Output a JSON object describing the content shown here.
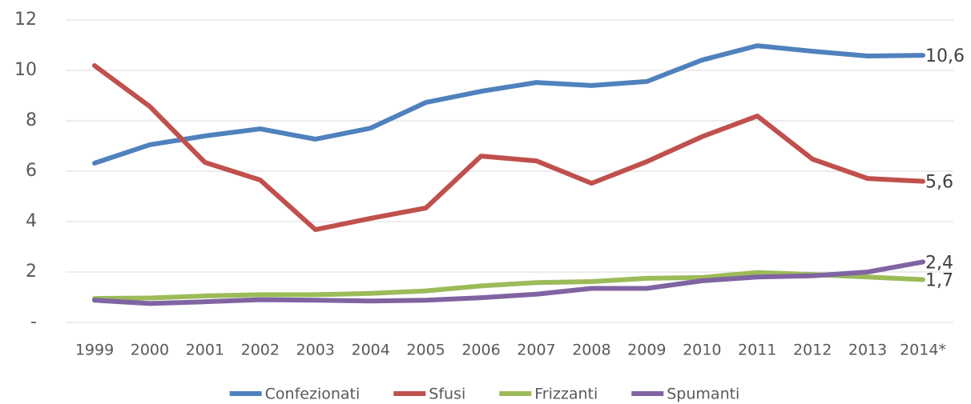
{
  "chart_data": {
    "type": "line",
    "categories": [
      "1999",
      "2000",
      "2001",
      "2002",
      "2003",
      "2004",
      "2005",
      "2006",
      "2007",
      "2008",
      "2009",
      "2010",
      "2011",
      "2012",
      "2013",
      "2014*"
    ],
    "series": [
      {
        "name": "Confezionati",
        "color": "#4f81bd",
        "values": [
          6.32,
          7.05,
          7.4,
          7.68,
          7.27,
          7.71,
          8.73,
          9.17,
          9.52,
          9.4,
          9.56,
          10.41,
          10.98,
          10.76,
          10.57,
          10.6
        ],
        "value_labels": [
          null,
          null,
          null,
          null,
          null,
          null,
          null,
          null,
          null,
          null,
          null,
          null,
          null,
          null,
          null,
          "10,6"
        ]
      },
      {
        "name": "Sfusi",
        "color": "#c0504d",
        "values": [
          10.19,
          8.57,
          6.35,
          5.65,
          3.68,
          4.13,
          4.54,
          6.6,
          6.41,
          5.52,
          6.38,
          7.37,
          8.19,
          6.48,
          5.71,
          5.6
        ],
        "value_labels": [
          null,
          null,
          null,
          null,
          null,
          null,
          null,
          null,
          null,
          null,
          null,
          null,
          null,
          null,
          null,
          "5,6"
        ]
      },
      {
        "name": "Frizzanti",
        "color": "#9bbb59",
        "values": [
          0.95,
          0.97,
          1.05,
          1.1,
          1.1,
          1.15,
          1.25,
          1.45,
          1.58,
          1.62,
          1.75,
          1.78,
          1.98,
          1.9,
          1.8,
          1.7
        ],
        "value_labels": [
          null,
          null,
          null,
          null,
          null,
          null,
          null,
          null,
          null,
          null,
          null,
          null,
          null,
          null,
          null,
          "1,7"
        ]
      },
      {
        "name": "Spumanti",
        "color": "#8064a2",
        "values": [
          0.88,
          0.75,
          0.82,
          0.9,
          0.88,
          0.85,
          0.88,
          0.98,
          1.12,
          1.35,
          1.35,
          1.65,
          1.8,
          1.85,
          2.0,
          2.4
        ],
        "value_labels": [
          null,
          null,
          null,
          null,
          null,
          null,
          null,
          null,
          null,
          null,
          null,
          null,
          null,
          null,
          null,
          "2,4"
        ]
      }
    ],
    "ylim": [
      0,
      12
    ],
    "yticks": [
      {
        "value": 0,
        "label": "-"
      },
      2,
      4,
      6,
      8,
      10,
      12
    ],
    "grid": true,
    "legend": "bottom"
  }
}
